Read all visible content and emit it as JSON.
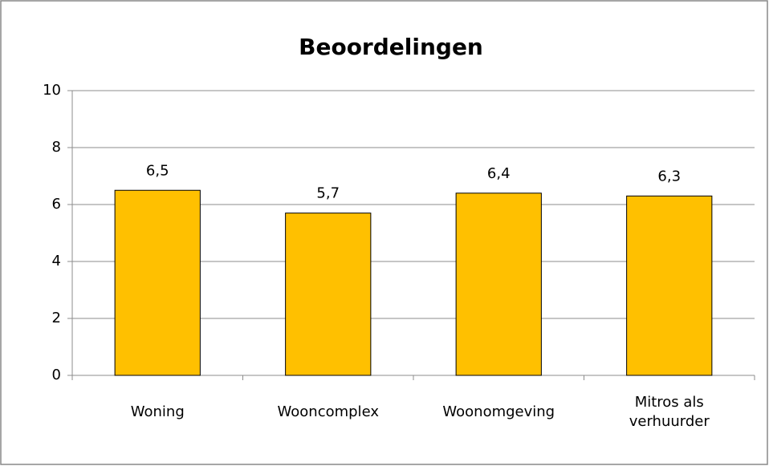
{
  "chart_data": {
    "type": "bar",
    "title": "Beoordelingen",
    "categories": [
      "Woning",
      "Wooncomplex",
      "Woonomgeving",
      "Mitros als verhuurder"
    ],
    "values": [
      6.5,
      5.7,
      6.4,
      6.3
    ],
    "value_labels": [
      "6,5",
      "5,7",
      "6,4",
      "6,3"
    ],
    "color": "#ffc000",
    "ylim": [
      0,
      10
    ],
    "yticks": [
      0,
      2,
      4,
      6,
      8,
      10
    ],
    "grid": true
  }
}
